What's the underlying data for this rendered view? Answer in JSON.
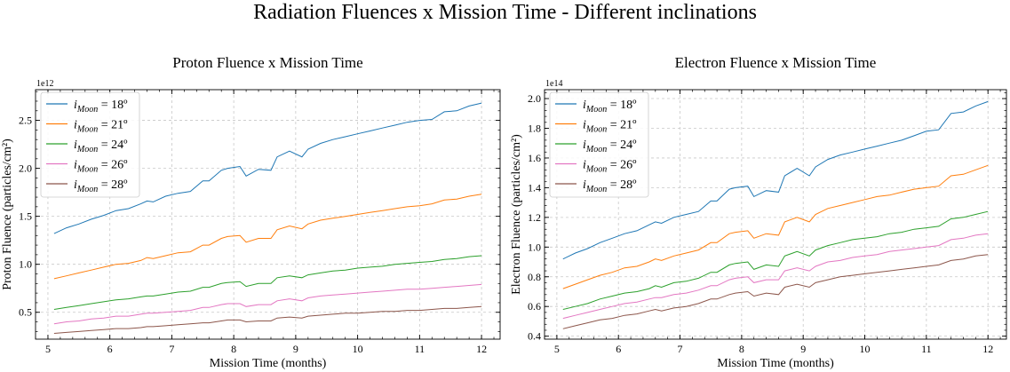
{
  "suptitle": "Radiation Fluences x Mission Time - Different inclinations",
  "chart_data": [
    {
      "type": "line",
      "title": "Proton Fluence x Mission Time",
      "xlabel": "Mission Time (months)",
      "ylabel": "Proton Fluence (particles/cm²)",
      "offset_text": "1e12",
      "xlim": [
        4.8,
        12.3
      ],
      "ylim": [
        0.22,
        2.82
      ],
      "xticks": [
        5,
        6,
        7,
        8,
        9,
        10,
        11,
        12
      ],
      "yticks": [
        0.5,
        1.0,
        1.5,
        2.0,
        2.5
      ],
      "ytick_labels": [
        "0.5",
        "1.0",
        "1.5",
        "2.0",
        "2.5"
      ],
      "grid": true,
      "legend_position": "upper-left",
      "x": [
        5.1,
        5.3,
        5.5,
        5.7,
        5.9,
        6.1,
        6.3,
        6.5,
        6.6,
        6.7,
        6.9,
        7.1,
        7.3,
        7.5,
        7.6,
        7.8,
        7.9,
        8.1,
        8.2,
        8.4,
        8.6,
        8.7,
        8.9,
        9.1,
        9.2,
        9.4,
        9.6,
        9.8,
        10.0,
        10.2,
        10.4,
        10.6,
        10.8,
        11.0,
        11.2,
        11.4,
        11.6,
        11.8,
        12.0
      ],
      "series": [
        {
          "name": "i_Moon = 18º",
          "color": "#1f77b4",
          "values": [
            1.32,
            1.38,
            1.42,
            1.47,
            1.51,
            1.56,
            1.58,
            1.63,
            1.66,
            1.65,
            1.71,
            1.74,
            1.76,
            1.87,
            1.87,
            1.98,
            2.0,
            2.02,
            1.92,
            1.99,
            1.98,
            2.12,
            2.18,
            2.12,
            2.2,
            2.26,
            2.3,
            2.33,
            2.36,
            2.39,
            2.42,
            2.45,
            2.48,
            2.5,
            2.51,
            2.59,
            2.6,
            2.65,
            2.68
          ]
        },
        {
          "name": "i_Moon = 21º",
          "color": "#ff7f0e",
          "values": [
            0.85,
            0.88,
            0.91,
            0.94,
            0.97,
            1.0,
            1.01,
            1.04,
            1.07,
            1.06,
            1.09,
            1.12,
            1.13,
            1.2,
            1.2,
            1.27,
            1.29,
            1.3,
            1.23,
            1.27,
            1.27,
            1.36,
            1.4,
            1.37,
            1.42,
            1.46,
            1.48,
            1.5,
            1.52,
            1.54,
            1.56,
            1.58,
            1.6,
            1.61,
            1.63,
            1.67,
            1.68,
            1.71,
            1.73
          ]
        },
        {
          "name": "i_Moon = 24º",
          "color": "#2ca02c",
          "values": [
            0.53,
            0.55,
            0.57,
            0.59,
            0.61,
            0.63,
            0.64,
            0.66,
            0.67,
            0.67,
            0.69,
            0.71,
            0.72,
            0.76,
            0.76,
            0.8,
            0.81,
            0.82,
            0.77,
            0.8,
            0.8,
            0.86,
            0.88,
            0.86,
            0.89,
            0.91,
            0.93,
            0.94,
            0.96,
            0.97,
            0.98,
            1.0,
            1.01,
            1.02,
            1.03,
            1.05,
            1.06,
            1.08,
            1.09
          ]
        },
        {
          "name": "i_Moon = 26º",
          "color": "#e377c2",
          "values": [
            0.38,
            0.4,
            0.41,
            0.43,
            0.44,
            0.46,
            0.46,
            0.48,
            0.49,
            0.49,
            0.5,
            0.51,
            0.52,
            0.55,
            0.55,
            0.58,
            0.59,
            0.59,
            0.56,
            0.58,
            0.58,
            0.62,
            0.64,
            0.62,
            0.65,
            0.67,
            0.68,
            0.69,
            0.7,
            0.71,
            0.72,
            0.73,
            0.74,
            0.74,
            0.75,
            0.76,
            0.77,
            0.78,
            0.79
          ]
        },
        {
          "name": "i_Moon = 28º",
          "color": "#8c564b",
          "values": [
            0.28,
            0.29,
            0.3,
            0.31,
            0.32,
            0.33,
            0.33,
            0.34,
            0.35,
            0.35,
            0.36,
            0.37,
            0.38,
            0.39,
            0.39,
            0.41,
            0.42,
            0.42,
            0.4,
            0.41,
            0.41,
            0.44,
            0.45,
            0.44,
            0.46,
            0.47,
            0.48,
            0.49,
            0.49,
            0.5,
            0.51,
            0.51,
            0.52,
            0.52,
            0.53,
            0.54,
            0.54,
            0.55,
            0.56
          ]
        }
      ]
    },
    {
      "type": "line",
      "title": "Electron Fluence x Mission Time",
      "xlabel": "Mission Time (months)",
      "ylabel": "Electron Fluence (particles/cm²)",
      "offset_text": "1e14",
      "xlim": [
        4.8,
        12.3
      ],
      "ylim": [
        0.38,
        2.06
      ],
      "xticks": [
        5,
        6,
        7,
        8,
        9,
        10,
        11,
        12
      ],
      "yticks": [
        0.4,
        0.6,
        0.8,
        1.0,
        1.2,
        1.4,
        1.6,
        1.8,
        2.0
      ],
      "ytick_labels": [
        "0.4",
        "0.6",
        "0.8",
        "1.0",
        "1.2",
        "1.4",
        "1.6",
        "1.8",
        "2.0"
      ],
      "grid": true,
      "legend_position": "upper-left",
      "x": [
        5.1,
        5.3,
        5.5,
        5.7,
        5.9,
        6.1,
        6.3,
        6.5,
        6.6,
        6.7,
        6.9,
        7.1,
        7.3,
        7.5,
        7.6,
        7.8,
        7.9,
        8.1,
        8.2,
        8.4,
        8.6,
        8.7,
        8.9,
        9.1,
        9.2,
        9.4,
        9.6,
        9.8,
        10.0,
        10.2,
        10.4,
        10.6,
        10.8,
        11.0,
        11.2,
        11.4,
        11.6,
        11.8,
        12.0
      ],
      "series": [
        {
          "name": "i_Moon = 18º",
          "color": "#1f77b4",
          "values": [
            0.92,
            0.96,
            0.99,
            1.03,
            1.06,
            1.09,
            1.11,
            1.15,
            1.17,
            1.16,
            1.2,
            1.22,
            1.24,
            1.31,
            1.31,
            1.39,
            1.4,
            1.41,
            1.34,
            1.38,
            1.37,
            1.48,
            1.53,
            1.48,
            1.54,
            1.59,
            1.62,
            1.64,
            1.66,
            1.68,
            1.7,
            1.72,
            1.75,
            1.78,
            1.79,
            1.9,
            1.91,
            1.95,
            1.98
          ]
        },
        {
          "name": "i_Moon = 21º",
          "color": "#ff7f0e",
          "values": [
            0.72,
            0.75,
            0.78,
            0.81,
            0.83,
            0.86,
            0.87,
            0.9,
            0.92,
            0.91,
            0.94,
            0.96,
            0.98,
            1.03,
            1.03,
            1.09,
            1.1,
            1.11,
            1.06,
            1.09,
            1.08,
            1.17,
            1.2,
            1.17,
            1.22,
            1.26,
            1.28,
            1.3,
            1.32,
            1.34,
            1.35,
            1.37,
            1.39,
            1.4,
            1.41,
            1.48,
            1.49,
            1.52,
            1.55
          ]
        },
        {
          "name": "i_Moon = 24º",
          "color": "#2ca02c",
          "values": [
            0.58,
            0.6,
            0.62,
            0.65,
            0.67,
            0.69,
            0.7,
            0.72,
            0.74,
            0.73,
            0.76,
            0.77,
            0.79,
            0.83,
            0.83,
            0.88,
            0.89,
            0.9,
            0.85,
            0.88,
            0.87,
            0.94,
            0.97,
            0.94,
            0.98,
            1.01,
            1.03,
            1.05,
            1.06,
            1.07,
            1.09,
            1.1,
            1.12,
            1.13,
            1.14,
            1.19,
            1.2,
            1.22,
            1.24
          ]
        },
        {
          "name": "i_Moon = 26º",
          "color": "#e377c2",
          "values": [
            0.52,
            0.54,
            0.56,
            0.58,
            0.6,
            0.62,
            0.63,
            0.65,
            0.66,
            0.66,
            0.68,
            0.69,
            0.71,
            0.74,
            0.74,
            0.78,
            0.79,
            0.8,
            0.76,
            0.78,
            0.78,
            0.84,
            0.86,
            0.84,
            0.87,
            0.9,
            0.91,
            0.93,
            0.94,
            0.95,
            0.97,
            0.98,
            0.99,
            1.0,
            1.01,
            1.05,
            1.06,
            1.08,
            1.09
          ]
        },
        {
          "name": "i_Moon = 28º",
          "color": "#8c564b",
          "values": [
            0.45,
            0.47,
            0.49,
            0.51,
            0.52,
            0.54,
            0.55,
            0.57,
            0.58,
            0.57,
            0.59,
            0.6,
            0.62,
            0.65,
            0.65,
            0.68,
            0.69,
            0.7,
            0.67,
            0.69,
            0.68,
            0.73,
            0.75,
            0.73,
            0.76,
            0.78,
            0.8,
            0.81,
            0.82,
            0.83,
            0.84,
            0.85,
            0.86,
            0.87,
            0.88,
            0.91,
            0.92,
            0.94,
            0.95
          ]
        }
      ]
    }
  ]
}
